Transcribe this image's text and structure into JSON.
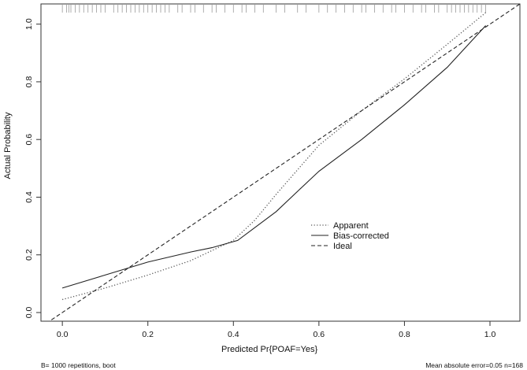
{
  "chart_data": {
    "type": "line",
    "title": "",
    "xlabel": "Predicted Pr{POAF=Yes}",
    "ylabel": "Actual Probability",
    "xlim": [
      -0.05,
      1.07
    ],
    "ylim": [
      -0.03,
      1.07
    ],
    "xticks": [
      "0.0",
      "0.2",
      "0.4",
      "0.6",
      "0.8",
      "1.0"
    ],
    "yticks": [
      "0.0",
      "0.2",
      "0.4",
      "0.6",
      "0.8",
      "1.0"
    ],
    "legend_position": "center-right",
    "series": [
      {
        "name": "Apparent",
        "style": "dotted",
        "color": "#555555",
        "x": [
          0.0,
          0.1,
          0.2,
          0.3,
          0.4,
          0.45,
          0.5,
          0.6,
          0.7,
          0.8,
          0.9,
          0.99
        ],
        "y": [
          0.045,
          0.085,
          0.13,
          0.18,
          0.25,
          0.32,
          0.41,
          0.58,
          0.7,
          0.81,
          0.93,
          1.04
        ]
      },
      {
        "name": "Bias-corrected",
        "style": "solid",
        "color": "#222222",
        "x": [
          0.0,
          0.1,
          0.2,
          0.3,
          0.35,
          0.41,
          0.5,
          0.55,
          0.6,
          0.7,
          0.8,
          0.9,
          0.99
        ],
        "y": [
          0.085,
          0.13,
          0.175,
          0.21,
          0.225,
          0.25,
          0.35,
          0.42,
          0.49,
          0.6,
          0.72,
          0.85,
          0.995
        ]
      },
      {
        "name": "Ideal",
        "style": "dashed",
        "color": "#222222",
        "x": [
          -0.05,
          1.07
        ],
        "y": [
          -0.05,
          1.07
        ]
      }
    ],
    "rug": [
      0.0,
      0.01,
      0.015,
      0.02,
      0.03,
      0.04,
      0.05,
      0.06,
      0.07,
      0.08,
      0.09,
      0.1,
      0.12,
      0.13,
      0.14,
      0.15,
      0.16,
      0.17,
      0.18,
      0.19,
      0.2,
      0.21,
      0.22,
      0.23,
      0.24,
      0.25,
      0.27,
      0.28,
      0.3,
      0.31,
      0.33,
      0.35,
      0.36,
      0.38,
      0.4,
      0.42,
      0.43,
      0.45,
      0.47,
      0.5,
      0.52,
      0.55,
      0.57,
      0.6,
      0.62,
      0.64,
      0.66,
      0.68,
      0.7,
      0.71,
      0.73,
      0.75,
      0.77,
      0.78,
      0.8,
      0.82,
      0.84,
      0.85,
      0.87,
      0.88,
      0.9,
      0.91,
      0.92,
      0.93,
      0.94,
      0.95,
      0.96,
      0.97,
      0.98,
      0.99
    ],
    "footer_left": "B= 1000 repetitions, boot",
    "footer_right": "Mean absolute error=0.05 n=168"
  }
}
